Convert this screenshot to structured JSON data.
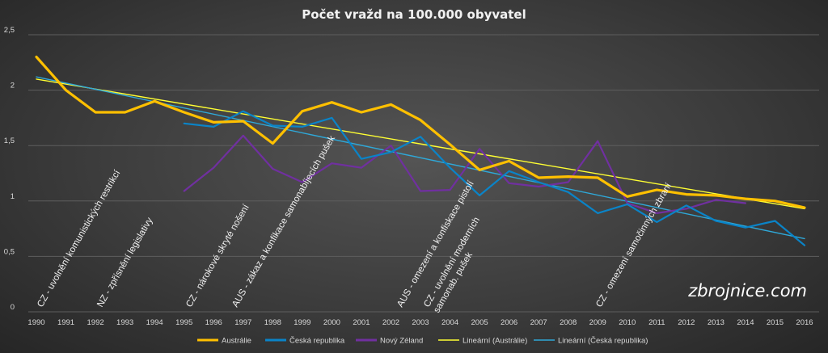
{
  "chart_data": {
    "type": "line",
    "title": "Počet vražd na 100.000 obyvatel",
    "x": [
      1990,
      1991,
      1992,
      1993,
      1994,
      1995,
      1996,
      1997,
      1998,
      1999,
      2000,
      2001,
      2002,
      2003,
      2004,
      2005,
      2006,
      2007,
      2008,
      2009,
      2010,
      2011,
      2012,
      2013,
      2014,
      2015,
      2016
    ],
    "ylim": [
      0,
      2.5
    ],
    "yticks": [
      0,
      0.5,
      1,
      1.5,
      2,
      2.5
    ],
    "ytick_labels": [
      "0",
      "0,5",
      "1",
      "1,5",
      "2",
      "2,5"
    ],
    "grid": true,
    "legend_position": "bottom",
    "series": [
      {
        "name": "Austrálie",
        "color": "#ffc000",
        "width": 3.2,
        "values": [
          2.3,
          2.0,
          1.8,
          1.8,
          1.9,
          1.8,
          1.71,
          1.72,
          1.52,
          1.81,
          1.89,
          1.8,
          1.87,
          1.73,
          1.51,
          1.28,
          1.36,
          1.21,
          1.22,
          1.21,
          1.04,
          1.1,
          1.06,
          1.05,
          1.02,
          1.0,
          0.94
        ]
      },
      {
        "name": "Česká republika",
        "color": "#0a84c8",
        "width": 2.2,
        "values": [
          null,
          null,
          null,
          null,
          null,
          1.7,
          1.67,
          1.81,
          1.68,
          1.67,
          1.75,
          1.38,
          1.44,
          1.58,
          1.3,
          1.05,
          1.27,
          1.17,
          1.08,
          0.89,
          0.97,
          0.81,
          0.96,
          0.82,
          0.76,
          0.82,
          0.6
        ]
      },
      {
        "name": "Nový Zéland",
        "color": "#7030a0",
        "width": 2.2,
        "values": [
          null,
          null,
          null,
          null,
          null,
          1.09,
          1.3,
          1.59,
          1.29,
          1.17,
          1.34,
          1.3,
          1.5,
          1.09,
          1.1,
          1.47,
          1.16,
          1.13,
          1.17,
          1.54,
          0.98,
          0.89,
          0.93,
          1.01,
          0.98,
          null,
          null
        ]
      },
      {
        "name": "Lineární (Austrálie)",
        "color": "#ffff33",
        "width": 1.4,
        "trend": [
          2.1,
          0.93
        ]
      },
      {
        "name": "Lineární (Česká republika)",
        "color": "#2fa8d8",
        "width": 1.4,
        "trend_from_index": 0,
        "trend": [
          2.12,
          0.66
        ]
      }
    ],
    "annotations": [
      {
        "text": "CZ - uvolnění komunistických restrikcí",
        "x": 1991,
        "lines": []
      },
      {
        "text": "NZ - zpřísnění legislativy",
        "x": 1992
      },
      {
        "text": "CZ - nárokové skryté nošení",
        "x": 1997
      },
      {
        "text": "AUS - zákaz a konfikace samonabíjecích pušek",
        "x": 1997
      },
      {
        "text": "AUS - omezení a konfiskace pistolí",
        "x": 2003
      },
      {
        "text": "CZ - uvolnění moderních samonab. pušek",
        "x": 2005
      },
      {
        "text": "CZ - omezení samočinných zbraní",
        "x": 2011
      }
    ]
  },
  "watermark": "zbrojnice.com"
}
